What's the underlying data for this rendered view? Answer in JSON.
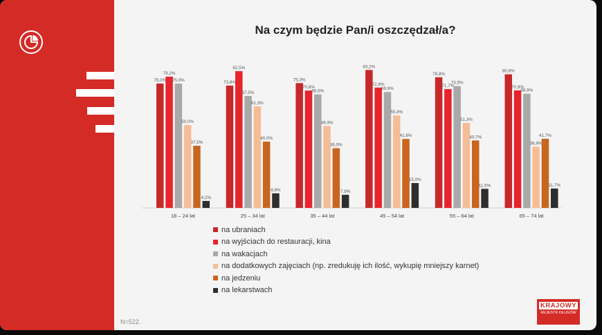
{
  "title": "Na czym będzie Pan/i oszczędzał/a?",
  "n_label": "N=522.",
  "brand": {
    "line1": "KRAJOWY",
    "line2": "REJESTR DŁUGÓW"
  },
  "colors": {
    "band": "#d42b27",
    "series": [
      "#c7282a",
      "#e8242c",
      "#a9a9a9",
      "#f5bd96",
      "#c8661f",
      "#2e2e2e"
    ]
  },
  "chart_data": {
    "type": "bar",
    "categories": [
      "18 – 24 lat",
      "25 – 34 lat",
      "35 – 44 lat",
      "45 – 54 lat",
      "55 – 64 lat",
      "65 – 74 lat"
    ],
    "series": [
      {
        "name": "na ubraniach",
        "values": [
          75.0,
          73.8,
          75.3,
          83.2,
          78.8,
          80.6
        ],
        "labels": [
          "75,0%",
          "73,8%",
          "75,3%",
          "83,2%",
          "78,8%",
          "80,6%"
        ]
      },
      {
        "name": "na wyjściach do restauracji, kina",
        "values": [
          79.2,
          82.5,
          70.8,
          72.6,
          71.7,
          70.9
        ],
        "labels": [
          "79,2%",
          "82,5%",
          "70,8%",
          "72,6%",
          "71,7%",
          "70,9%"
        ]
      },
      {
        "name": "na wakacjach",
        "values": [
          75.0,
          67.5,
          68.5,
          69.9,
          73.5,
          68.9
        ],
        "labels": [
          "75,0%",
          "67,5%",
          "68,5%",
          "69,9%",
          "73,5%",
          "68,9%"
        ]
      },
      {
        "name": "na dodatkowych zajęciach (np. zredukuję ich ilość, wykupię mniejszy karnet)",
        "values": [
          50.0,
          61.3,
          49.4,
          55.8,
          51.3,
          36.9
        ],
        "labels": [
          "50,0%",
          "61,3%",
          "49,4%",
          "55,8%",
          "51,3%",
          "36,9%"
        ]
      },
      {
        "name": "na jedzeniu",
        "values": [
          37.5,
          40.0,
          36.0,
          41.6,
          40.7,
          41.7
        ],
        "labels": [
          "37,5%",
          "40,0%",
          "36,0%",
          "41,6%",
          "40,7%",
          "41,7%"
        ]
      },
      {
        "name": "na lekarstwach",
        "values": [
          4.2,
          8.8,
          7.9,
          15.0,
          11.5,
          11.7
        ],
        "labels": [
          "4,2%",
          "8,8%",
          "7,9%",
          "15,0%",
          "11,5%",
          "11,7%"
        ]
      }
    ],
    "ylim": [
      0,
      100
    ],
    "legend_position": "bottom",
    "grid": false
  }
}
